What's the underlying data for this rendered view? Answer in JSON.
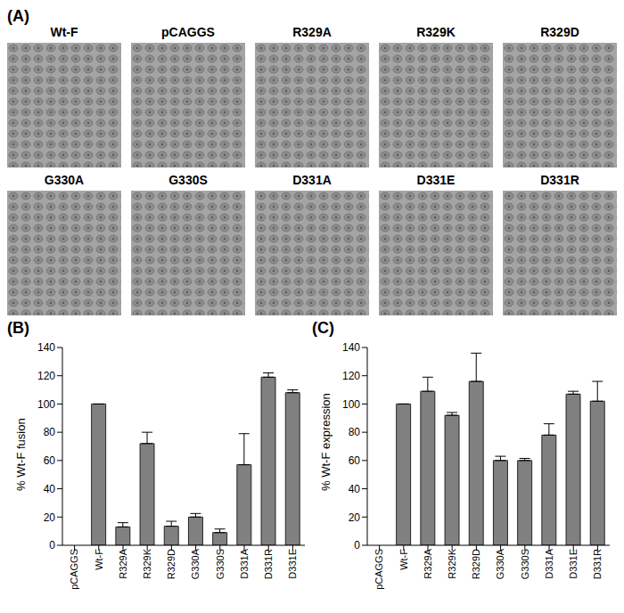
{
  "panel_a": {
    "title": "(A)",
    "image_labels": [
      "Wt-F",
      "pCAGGS",
      "R329A",
      "R329K",
      "R329D",
      "G330A",
      "G330S",
      "D331A",
      "D331E",
      "D331R"
    ]
  },
  "chart_data": [
    {
      "type": "bar",
      "title": "(B)",
      "y_label": "% Wt-F fusion",
      "categories": [
        "pCAGGS",
        "Wt-F",
        "R329A",
        "R329K",
        "R329D",
        "G330A",
        "G330S",
        "D331A",
        "D331R",
        "D331E"
      ],
      "values": [
        0,
        100,
        13,
        72,
        13.5,
        20,
        9,
        57,
        119,
        108
      ],
      "errors": [
        0,
        0,
        3,
        8,
        3.5,
        2.5,
        2.5,
        22,
        3,
        2
      ],
      "color": "#808080",
      "ylim": [
        0,
        140
      ],
      "yticks": [
        0,
        20,
        40,
        60,
        80,
        100,
        120,
        140
      ],
      "grid": false
    },
    {
      "type": "bar",
      "title": "(C)",
      "y_label": "% Wt-F expression",
      "categories": [
        "pCAGGS",
        "Wt-F",
        "R329A",
        "R329K",
        "R329D",
        "G330A",
        "G330S",
        "D331A",
        "D331E",
        "D331R"
      ],
      "values": [
        0,
        100,
        109,
        92,
        116,
        60,
        60,
        78,
        107,
        102
      ],
      "errors": [
        0,
        0,
        10,
        2,
        20,
        3,
        1.5,
        8,
        2,
        14
      ],
      "color": "#808080",
      "ylim": [
        0,
        140
      ],
      "yticks": [
        0,
        20,
        40,
        60,
        80,
        100,
        120,
        140
      ],
      "grid": false
    }
  ]
}
